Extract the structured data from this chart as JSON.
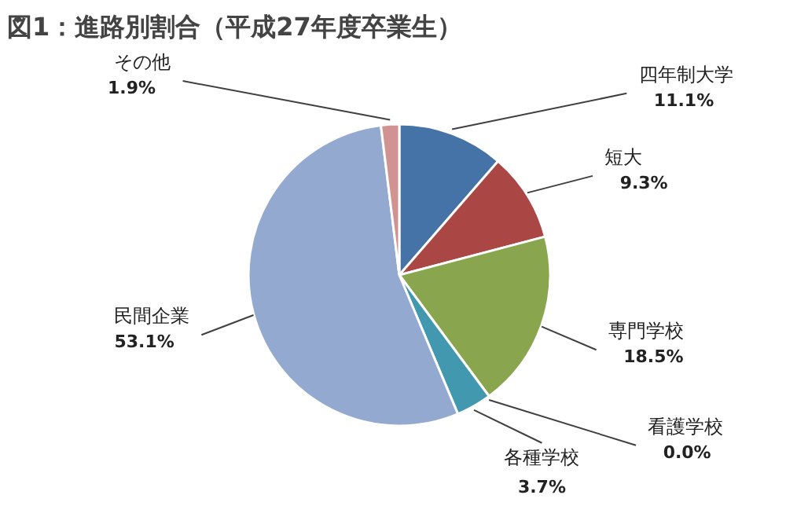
{
  "chart_data": {
    "type": "pie",
    "title": "図1：進路別割合（平成27年度卒業生）",
    "categories": [
      "四年制大学",
      "短大",
      "専門学校",
      "看護学校",
      "各種学校",
      "民間企業",
      "その他"
    ],
    "values": [
      11.1,
      9.3,
      18.5,
      0.0,
      3.7,
      53.1,
      1.9
    ],
    "value_labels": [
      "11.1%",
      "9.3%",
      "18.5%",
      "0.0%",
      "3.7%",
      "53.1%",
      "1.9%"
    ],
    "colors": [
      "#4572a7",
      "#aa4643",
      "#89a54e",
      "#80699b",
      "#4198af",
      "#93a9cf",
      "#d19392"
    ]
  }
}
